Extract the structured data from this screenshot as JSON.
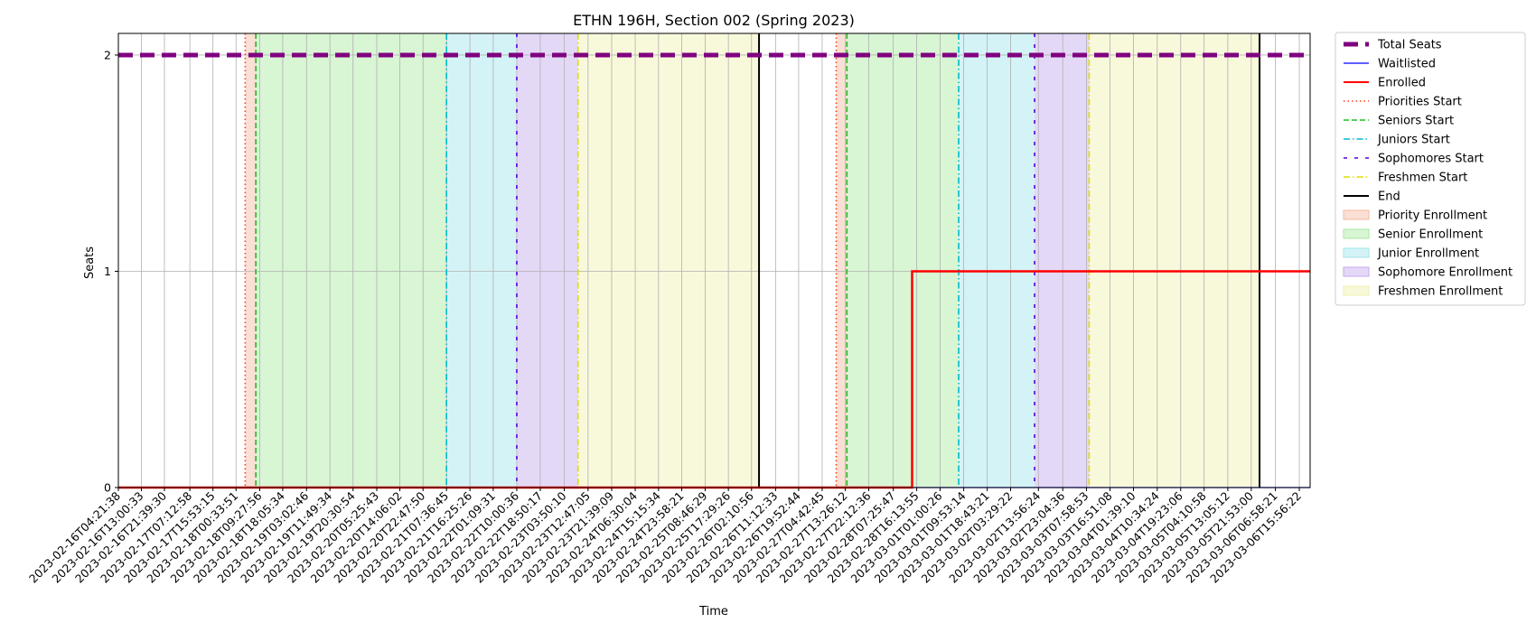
{
  "chart_data": {
    "type": "line",
    "title": "ETHN 196H, Section 002 (Spring 2023)",
    "xlabel": "Time",
    "ylabel": "Seats",
    "x_range": [
      "2023-02-16T04:21:38",
      "2023-03-06T20:00:00"
    ],
    "ylim": [
      0,
      2.1
    ],
    "yticks": [
      0,
      1,
      2
    ],
    "grid": true,
    "legend_position": "outside-right",
    "x_ticks": [
      "2023-02-16T04:21:38",
      "2023-02-16T13:00:33",
      "2023-02-16T21:39:30",
      "2023-02-17T07:12:58",
      "2023-02-17T15:53:15",
      "2023-02-18T00:33:51",
      "2023-02-18T09:27:56",
      "2023-02-18T18:05:34",
      "2023-02-19T03:02:46",
      "2023-02-19T11:49:34",
      "2023-02-19T20:30:54",
      "2023-02-20T05:25:43",
      "2023-02-20T14:06:02",
      "2023-02-20T22:47:50",
      "2023-02-21T07:36:45",
      "2023-02-21T16:25:26",
      "2023-02-22T01:09:31",
      "2023-02-22T10:00:36",
      "2023-02-22T18:50:17",
      "2023-02-23T03:50:10",
      "2023-02-23T12:47:05",
      "2023-02-23T21:39:09",
      "2023-02-24T06:30:04",
      "2023-02-24T15:15:34",
      "2023-02-24T23:58:21",
      "2023-02-25T08:46:29",
      "2023-02-25T17:29:26",
      "2023-02-26T02:10:56",
      "2023-02-26T11:12:33",
      "2023-02-26T19:52:44",
      "2023-02-27T04:42:45",
      "2023-02-27T13:26:12",
      "2023-02-27T22:12:36",
      "2023-02-28T07:25:47",
      "2023-02-28T16:13:55",
      "2023-03-01T01:00:26",
      "2023-03-01T09:53:14",
      "2023-03-01T18:43:21",
      "2023-03-02T03:29:22",
      "2023-03-02T13:56:24",
      "2023-03-02T23:04:36",
      "2023-03-03T07:58:53",
      "2023-03-03T16:51:08",
      "2023-03-04T01:39:10",
      "2023-03-04T10:34:24",
      "2023-03-04T19:23:06",
      "2023-03-05T04:10:58",
      "2023-03-05T13:05:12",
      "2023-03-05T21:53:00",
      "2023-03-06T06:58:21",
      "2023-03-06T15:56:22"
    ],
    "series": [
      {
        "name": "Total Seats",
        "color": "#800080",
        "style": "dashed-thick",
        "x": [
          "2023-02-16T04:21:38",
          "2023-03-06T20:00:00"
        ],
        "values": [
          2,
          2
        ]
      },
      {
        "name": "Waitlisted",
        "color": "#0000ff",
        "style": "solid-thin",
        "x": [
          "2023-02-16T04:21:38",
          "2023-03-06T20:00:00"
        ],
        "values": [
          0,
          0
        ]
      },
      {
        "name": "Enrolled",
        "color": "#ff0000",
        "style": "step",
        "x": [
          "2023-02-16T04:21:38",
          "2023-02-28T14:30:00",
          "2023-03-06T20:00:00"
        ],
        "values": [
          0,
          1,
          1
        ]
      }
    ],
    "events": [
      {
        "name": "Priorities Start",
        "color": "#ff3b1f",
        "style": "dotted",
        "times": [
          "2023-02-18T04:00:00",
          "2023-02-27T10:00:00"
        ]
      },
      {
        "name": "Seniors Start",
        "color": "#22bb22",
        "style": "dashed",
        "times": [
          "2023-02-18T08:00:00",
          "2023-02-27T14:00:00"
        ]
      },
      {
        "name": "Juniors Start",
        "color": "#00bbcc",
        "style": "dashdot",
        "times": [
          "2023-02-21T07:36:45",
          "2023-03-01T08:00:00"
        ]
      },
      {
        "name": "Sophomores Start",
        "color": "#5500dd",
        "style": "loosedash",
        "times": [
          "2023-02-22T10:00:36",
          "2023-03-02T12:30:00"
        ]
      },
      {
        "name": "Freshmen Start",
        "color": "#dddd00",
        "style": "dashdot",
        "times": [
          "2023-02-23T09:00:00",
          "2023-03-03T09:00:00"
        ]
      },
      {
        "name": "End",
        "color": "#000000",
        "style": "solid",
        "times": [
          "2023-02-26T05:00:00",
          "2023-03-06T01:00:00"
        ]
      }
    ],
    "regions": [
      {
        "name": "Priority Enrollment",
        "color": "#f4b8a0",
        "spans": [
          [
            "2023-02-18T04:00:00",
            "2023-02-18T08:00:00"
          ],
          [
            "2023-02-27T10:00:00",
            "2023-02-27T14:00:00"
          ]
        ]
      },
      {
        "name": "Senior Enrollment",
        "color": "#a8e8a0",
        "spans": [
          [
            "2023-02-18T08:00:00",
            "2023-02-21T07:36:45"
          ],
          [
            "2023-02-27T14:00:00",
            "2023-03-01T08:00:00"
          ]
        ]
      },
      {
        "name": "Junior Enrollment",
        "color": "#a0e4ea",
        "spans": [
          [
            "2023-02-21T07:36:45",
            "2023-02-22T10:00:36"
          ],
          [
            "2023-03-01T08:00:00",
            "2023-03-02T12:30:00"
          ]
        ]
      },
      {
        "name": "Sophomore Enrollment",
        "color": "#c4a8ee",
        "spans": [
          [
            "2023-02-22T10:00:36",
            "2023-02-23T09:00:00"
          ],
          [
            "2023-03-02T12:30:00",
            "2023-03-03T09:00:00"
          ]
        ]
      },
      {
        "name": "Freshmen Enrollment",
        "color": "#f0f0b0",
        "spans": [
          [
            "2023-02-23T09:00:00",
            "2023-02-26T05:00:00"
          ],
          [
            "2023-03-03T09:00:00",
            "2023-03-06T01:00:00"
          ]
        ]
      }
    ],
    "legend": [
      {
        "label": "Total Seats",
        "kind": "line",
        "color": "#800080",
        "style": "dashed-thick"
      },
      {
        "label": "Waitlisted",
        "kind": "line",
        "color": "#0000ff",
        "style": "solid-thin"
      },
      {
        "label": "Enrolled",
        "kind": "line",
        "color": "#ff0000",
        "style": "solid"
      },
      {
        "label": "Priorities Start",
        "kind": "line",
        "color": "#ff3b1f",
        "style": "dotted"
      },
      {
        "label": "Seniors Start",
        "kind": "line",
        "color": "#22bb22",
        "style": "dashed"
      },
      {
        "label": "Juniors Start",
        "kind": "line",
        "color": "#00bbcc",
        "style": "dashdot"
      },
      {
        "label": "Sophomores Start",
        "kind": "line",
        "color": "#5500dd",
        "style": "loosedash"
      },
      {
        "label": "Freshmen Start",
        "kind": "line",
        "color": "#dddd00",
        "style": "dashdot"
      },
      {
        "label": "End",
        "kind": "line",
        "color": "#000000",
        "style": "solid"
      },
      {
        "label": "Priority Enrollment",
        "kind": "patch",
        "color": "#f4b8a0"
      },
      {
        "label": "Senior Enrollment",
        "kind": "patch",
        "color": "#a8e8a0"
      },
      {
        "label": "Junior Enrollment",
        "kind": "patch",
        "color": "#a0e4ea"
      },
      {
        "label": "Sophomore Enrollment",
        "kind": "patch",
        "color": "#c4a8ee"
      },
      {
        "label": "Freshmen Enrollment",
        "kind": "patch",
        "color": "#f0f0b0"
      }
    ]
  }
}
